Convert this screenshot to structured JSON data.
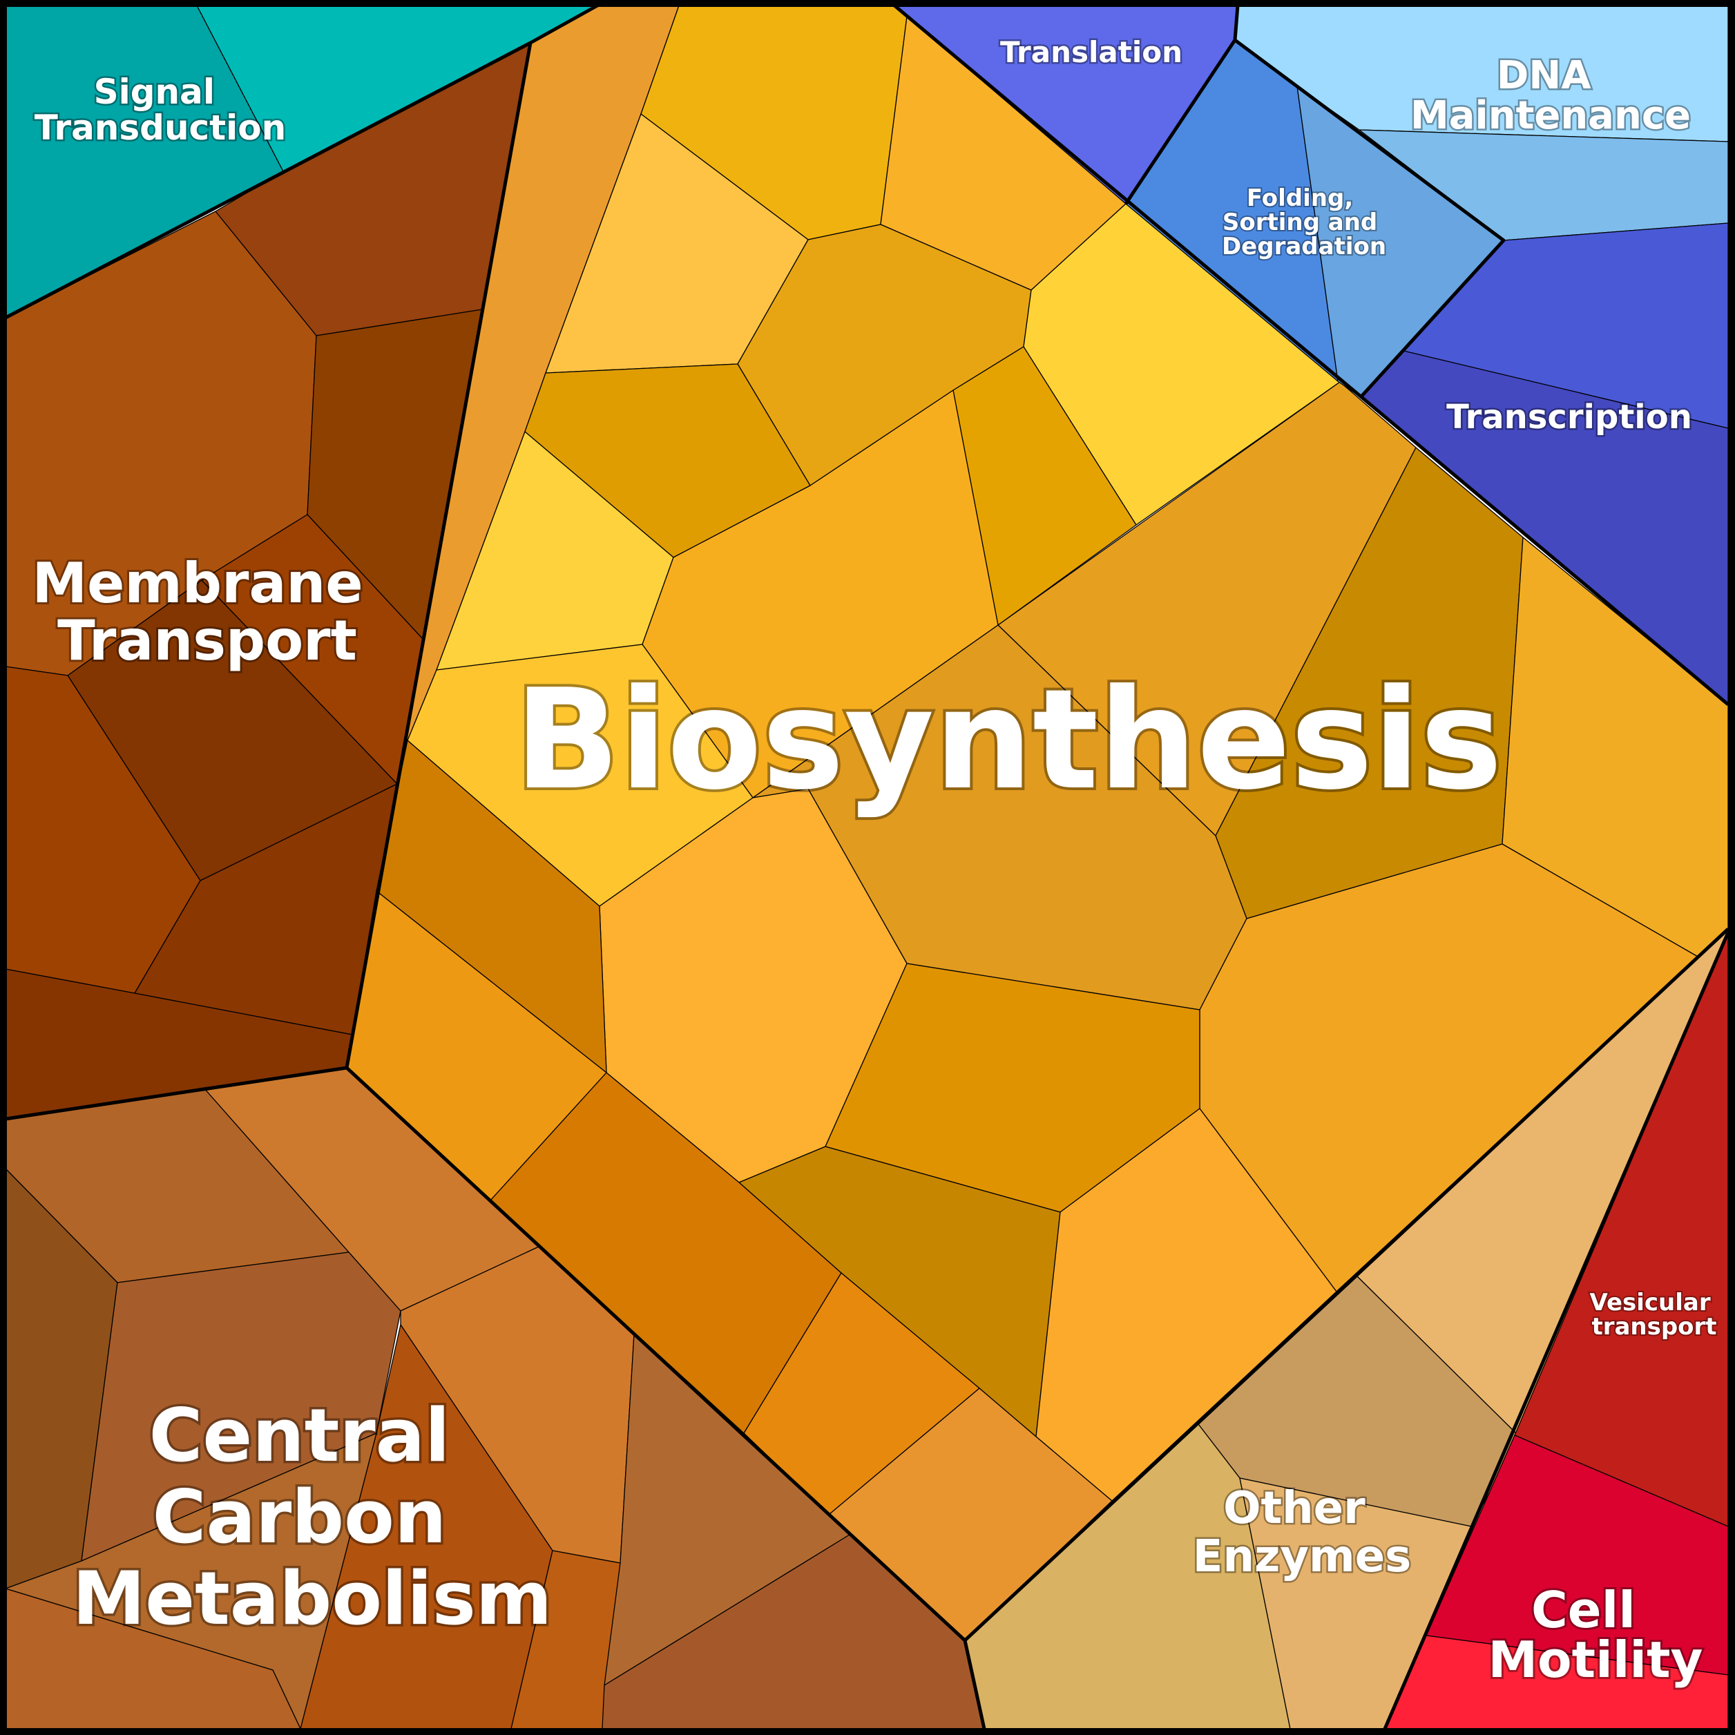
{
  "diagram": {
    "type": "voronoi-treemap",
    "regions": [
      {
        "id": "signal-transduction",
        "lines": [
          "Signal",
          "Transduction"
        ],
        "color": "#00AEAE"
      },
      {
        "id": "membrane-transport",
        "lines": [
          "Membrane",
          "Transport"
        ],
        "color": "#9C4209"
      },
      {
        "id": "biosynthesis",
        "lines": [
          "Biosynthesis"
        ],
        "color": "#F2A72A"
      },
      {
        "id": "translation",
        "lines": [
          "Translation"
        ],
        "color": "#5E6BEA"
      },
      {
        "id": "folding-sorting-degradation",
        "lines": [
          "Folding,",
          "Sorting and",
          "Degradation"
        ],
        "color": "#5D9FE2"
      },
      {
        "id": "dna-maintenance",
        "lines": [
          "DNA",
          "Maintenance"
        ],
        "color": "#8FCAF4"
      },
      {
        "id": "transcription",
        "lines": [
          "Transcription"
        ],
        "color": "#4550C8"
      },
      {
        "id": "central-carbon-metabolism",
        "lines": [
          "Central",
          "Carbon",
          "Metabolism"
        ],
        "color": "#B9652A"
      },
      {
        "id": "other-enzymes",
        "lines": [
          "Other",
          "Enzymes"
        ],
        "color": "#D9AE68"
      },
      {
        "id": "vesicular-transport",
        "lines": [
          "Vesicular",
          "transport"
        ],
        "color": "#C11F1A"
      },
      {
        "id": "cell-motility",
        "lines": [
          "Cell",
          "Motility"
        ],
        "color": "#E0082F"
      }
    ]
  }
}
